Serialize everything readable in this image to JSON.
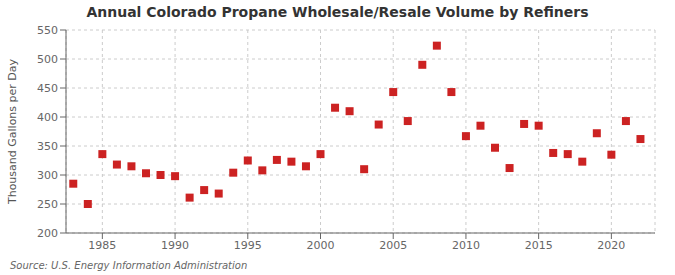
{
  "chart_data": {
    "type": "scatter",
    "title": "Annual Colorado Propane Wholesale/Resale Volume by Refiners",
    "ylabel": "Thousand Gallons per Day",
    "annotations": [
      "Source: U.S. Energy Information Administration"
    ],
    "x": [
      1983,
      1984,
      1985,
      1986,
      1987,
      1988,
      1989,
      1990,
      1991,
      1992,
      1993,
      1994,
      1995,
      1996,
      1997,
      1998,
      1999,
      2000,
      2001,
      2002,
      2003,
      2004,
      2005,
      2006,
      2007,
      2008,
      2009,
      2010,
      2011,
      2012,
      2013,
      2014,
      2015,
      2016,
      2017,
      2018,
      2019,
      2020,
      2021,
      2022
    ],
    "values": [
      285,
      250,
      336,
      318,
      315,
      303,
      300,
      298,
      261,
      274,
      268,
      304,
      325,
      308,
      326,
      323,
      315,
      336,
      416,
      410,
      310,
      387,
      443,
      393,
      490,
      523,
      443,
      367,
      385,
      347,
      312,
      388,
      385,
      338,
      336,
      323,
      372,
      335,
      393,
      362
    ],
    "color": "#cc2222",
    "marker": "square",
    "xlim": [
      1982.5,
      2023
    ],
    "ylim": [
      200,
      550
    ],
    "xticks": [
      1985,
      1990,
      1995,
      2000,
      2005,
      2010,
      2015,
      2020
    ],
    "yticks": [
      200,
      250,
      300,
      350,
      400,
      450,
      500,
      550
    ],
    "grid": true
  }
}
